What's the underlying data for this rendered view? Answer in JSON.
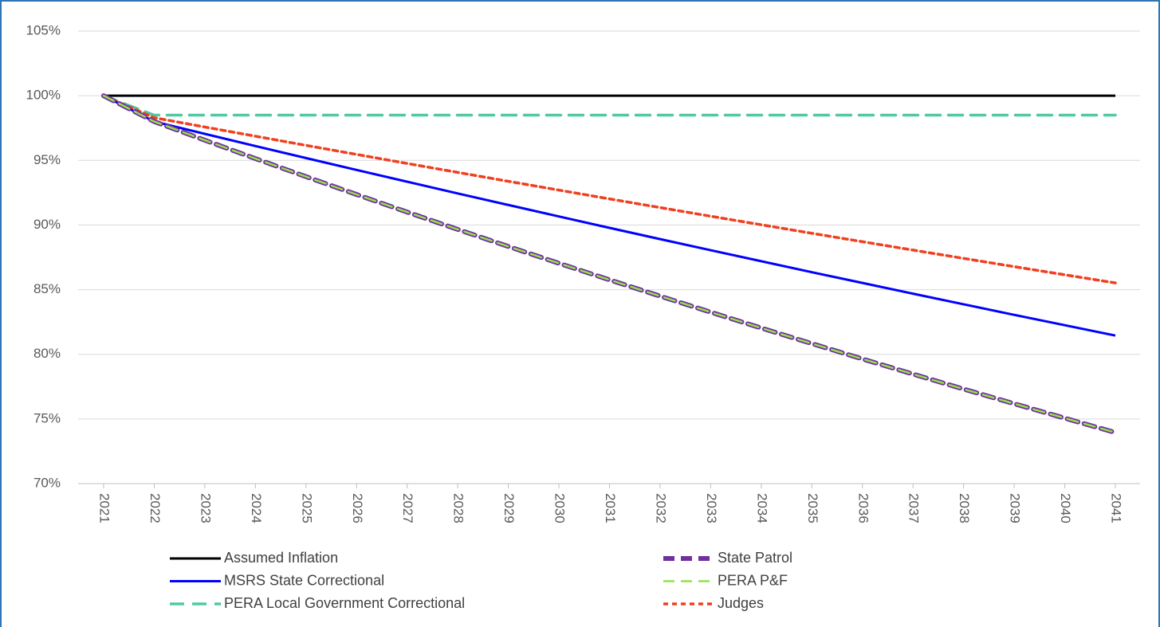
{
  "chart_data": {
    "type": "line",
    "x": [
      2021,
      2022,
      2023,
      2024,
      2025,
      2026,
      2027,
      2028,
      2029,
      2030,
      2031,
      2032,
      2033,
      2034,
      2035,
      2036,
      2037,
      2038,
      2039,
      2040,
      2041
    ],
    "series": [
      {
        "name": "Assumed Inflation",
        "color": "#000000",
        "style": "solid",
        "width": 3,
        "values": [
          100,
          100,
          100,
          100,
          100,
          100,
          100,
          100,
          100,
          100,
          100,
          100,
          100,
          100,
          100,
          100,
          100,
          100,
          100,
          100,
          100
        ]
      },
      {
        "name": "MSRS State Correctional",
        "color": "#0000ff",
        "style": "solid",
        "width": 3,
        "values": [
          100,
          98.0,
          97.05,
          96.11,
          95.18,
          94.26,
          93.35,
          92.44,
          91.55,
          90.66,
          89.78,
          88.91,
          88.05,
          87.2,
          86.35,
          85.52,
          84.69,
          83.87,
          83.05,
          82.25,
          81.45
        ]
      },
      {
        "name": "PERA Local Government Correctional",
        "color": "#4fc9a4",
        "style": "long-dash",
        "width": 3.5,
        "values": [
          100,
          98.5,
          98.5,
          98.5,
          98.5,
          98.5,
          98.5,
          98.5,
          98.5,
          98.5,
          98.5,
          98.5,
          98.5,
          98.5,
          98.5,
          98.5,
          98.5,
          98.5,
          98.5,
          98.5,
          98.5
        ]
      },
      {
        "name": "State Patrol",
        "color": "#7030a0",
        "style": "dash",
        "width": 6,
        "values": [
          100,
          98.0,
          96.56,
          95.14,
          93.74,
          92.36,
          91.0,
          89.66,
          88.34,
          87.04,
          85.76,
          84.5,
          83.26,
          82.03,
          80.83,
          79.64,
          78.47,
          77.31,
          76.18,
          75.06,
          73.95
        ]
      },
      {
        "name": "PERA P&F",
        "color": "#92e04a",
        "style": "dash",
        "width": 2.5,
        "values": [
          100,
          98.0,
          96.56,
          95.14,
          93.74,
          92.36,
          91.0,
          89.66,
          88.34,
          87.04,
          85.76,
          84.5,
          83.26,
          82.03,
          80.83,
          79.64,
          78.47,
          77.31,
          76.18,
          75.06,
          73.95
        ]
      },
      {
        "name": "Judges",
        "color": "#f04020",
        "style": "dot",
        "width": 3.5,
        "values": [
          100,
          98.3,
          97.58,
          96.87,
          96.16,
          95.46,
          94.76,
          94.07,
          93.38,
          92.7,
          92.02,
          91.35,
          90.68,
          90.02,
          89.36,
          88.71,
          88.06,
          87.42,
          86.78,
          86.15,
          85.52
        ]
      }
    ],
    "ylim": [
      70,
      105
    ],
    "yticks": [
      {
        "value": 70,
        "label": "70%"
      },
      {
        "value": 75,
        "label": "75%"
      },
      {
        "value": 80,
        "label": "80%"
      },
      {
        "value": 85,
        "label": "85%"
      },
      {
        "value": 90,
        "label": "90%"
      },
      {
        "value": 95,
        "label": "95%"
      },
      {
        "value": 100,
        "label": "100%"
      },
      {
        "value": 105,
        "label": "105%"
      }
    ],
    "grid": true,
    "legend": "bottom"
  }
}
